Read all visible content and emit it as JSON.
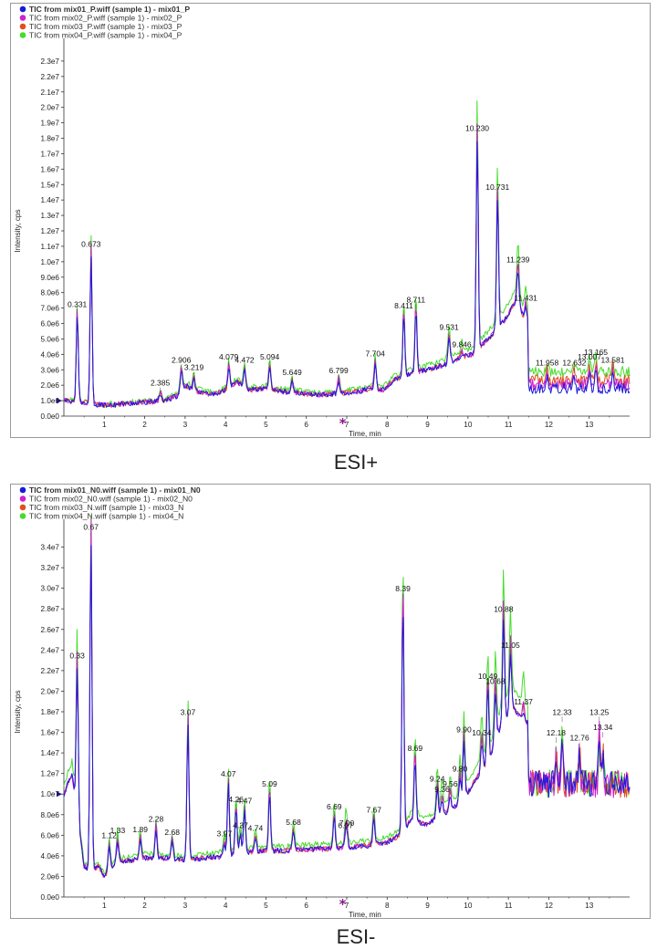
{
  "captions": {
    "top": "ESI+",
    "bottom": "ESI-"
  },
  "chart_data": [
    {
      "type": "line",
      "caption": "ESI+",
      "xlabel": "Time, min",
      "ylabel": "Intensity, cps",
      "xlim": [
        0,
        14
      ],
      "ylim": [
        0,
        24000000
      ],
      "x_ticks": [
        1,
        2,
        3,
        4,
        5,
        6,
        7,
        8,
        9,
        10,
        11,
        12,
        13
      ],
      "y_ticks": [
        0,
        1000000,
        2000000,
        3000000,
        4000000,
        5000000,
        6000000,
        7000000,
        8000000,
        9000000,
        10000000,
        11000000,
        12000000,
        13000000,
        14000000,
        15000000,
        16000000,
        17000000,
        18000000,
        19000000,
        20000000,
        21000000,
        22000000,
        23000000
      ],
      "y_tick_labels": [
        "0.0e0",
        "1.0e6",
        "2.0e6",
        "3.0e6",
        "4.0e6",
        "5.0e6",
        "6.0e6",
        "7.0e6",
        "8.0e6",
        "9.0e6",
        "1.0e7",
        "1.1e7",
        "1.2e7",
        "1.3e7",
        "1.4e7",
        "1.5e7",
        "1.6e7",
        "1.7e7",
        "1.8e7",
        "1.9e7",
        "2.0e7",
        "2.1e7",
        "2.2e7",
        "2.3e7"
      ],
      "legend": [
        "TIC from mix01_P.wiff (sample 1) - mix01_P",
        "TIC from mix02_P.wiff (sample 1) - mix02_P",
        "TIC from mix03_P.wiff (sample 1) - mix03_P",
        "TIC from mix04_P.wiff (sample 1) - mix04_P"
      ],
      "legend_colors": [
        "#1a1adc",
        "#d020d0",
        "#e0501e",
        "#46dc2a"
      ],
      "legend_placement": "top-left",
      "baseline_segments": [
        {
          "x": [
            0.0,
            0.5,
            0.65,
            1.0,
            1.5,
            2.0,
            2.5,
            2.8,
            3.0,
            3.3,
            3.7,
            4.0,
            4.3,
            4.6,
            5.0,
            5.4,
            5.8,
            6.2,
            6.5,
            6.9,
            7.3,
            7.6,
            7.9,
            8.2,
            8.6,
            9.0,
            9.4,
            9.8,
            10.1,
            10.5,
            10.9,
            11.2,
            11.45
          ],
          "y": [
            1000000,
            900000,
            800000,
            700000,
            800000,
            900000,
            1000000,
            1300000,
            2000000,
            1600000,
            1400000,
            1700000,
            2200000,
            1700000,
            1800000,
            1600000,
            1500000,
            1400000,
            1400000,
            1500000,
            1600000,
            1800000,
            1700000,
            2400000,
            2800000,
            3000000,
            3300000,
            3800000,
            4000000,
            5000000,
            6200000,
            7500000,
            6000000
          ]
        },
        {
          "x": [
            11.5,
            14.0
          ],
          "y": [
            1800000,
            1800000
          ]
        }
      ],
      "peaks": [
        {
          "label": "0.331",
          "x": 0.331,
          "y": 6600000
        },
        {
          "label": "0.673",
          "x": 0.673,
          "y": 10500000
        },
        {
          "label": "2.385",
          "x": 2.385,
          "y": 1500000
        },
        {
          "label": "2.906",
          "x": 2.906,
          "y": 3000000
        },
        {
          "label": "3.219",
          "x": 3.219,
          "y": 2500000
        },
        {
          "label": "4.079",
          "x": 4.079,
          "y": 3200000
        },
        {
          "label": "4.472",
          "x": 4.472,
          "y": 3000000
        },
        {
          "label": "5.094",
          "x": 5.094,
          "y": 3200000
        },
        {
          "label": "5.649",
          "x": 5.649,
          "y": 2200000
        },
        {
          "label": "6.799",
          "x": 6.799,
          "y": 2300000
        },
        {
          "label": "7.704",
          "x": 7.704,
          "y": 3400000
        },
        {
          "label": "8.411",
          "x": 8.411,
          "y": 6500000
        },
        {
          "label": "8.711",
          "x": 8.711,
          "y": 6900000
        },
        {
          "label": "9.531",
          "x": 9.531,
          "y": 5100000
        },
        {
          "label": "9.846",
          "x": 9.846,
          "y": 4000000
        },
        {
          "label": "10.230",
          "x": 10.23,
          "y": 18000000
        },
        {
          "label": "10.731",
          "x": 10.731,
          "y": 14200000
        },
        {
          "label": "11.239",
          "x": 11.239,
          "y": 9500000
        },
        {
          "label": "11.431",
          "x": 11.431,
          "y": 7000000
        },
        {
          "label": "11.958",
          "x": 11.958,
          "y": 2800000
        },
        {
          "label": "12.632",
          "x": 12.632,
          "y": 2800000
        },
        {
          "label": "13.007",
          "x": 13.007,
          "y": 3200000
        },
        {
          "label": "13.165",
          "x": 13.165,
          "y": 3500000
        },
        {
          "label": "13.581",
          "x": 13.581,
          "y": 3000000
        }
      ],
      "noise_region": [
        11.5,
        14.0
      ]
    },
    {
      "type": "line",
      "caption": "ESI-",
      "xlabel": "Time, min",
      "ylabel": "Intensity, cps",
      "xlim": [
        0,
        14
      ],
      "ylim": [
        0,
        36000000
      ],
      "x_ticks": [
        1,
        2,
        3,
        4,
        5,
        6,
        7,
        8,
        9,
        10,
        11,
        12,
        13
      ],
      "y_ticks": [
        0,
        2000000,
        4000000,
        6000000,
        8000000,
        10000000,
        12000000,
        14000000,
        16000000,
        18000000,
        20000000,
        22000000,
        24000000,
        26000000,
        28000000,
        30000000,
        32000000,
        34000000
      ],
      "y_tick_labels": [
        "0.0e0",
        "2.0e6",
        "4.0e6",
        "6.0e6",
        "8.0e6",
        "1.0e7",
        "1.2e7",
        "1.4e7",
        "1.6e7",
        "1.8e7",
        "2.0e7",
        "2.2e7",
        "2.4e7",
        "2.6e7",
        "2.8e7",
        "3.0e7",
        "3.2e7",
        "3.4e7"
      ],
      "legend": [
        "TIC from mix01_N0.wiff (sample 1) - mix01_N0",
        "TIC from mix02_N0.wiff (sample 1) - mix02_N0",
        "TIC from mix03_N.wiff (sample 1) - mix03_N",
        "TIC from mix04_N.wiff (sample 1) - mix04_N"
      ],
      "legend_colors": [
        "#1a1adc",
        "#d020d0",
        "#e0501e",
        "#46dc2a"
      ],
      "legend_placement": "top-left",
      "baseline_segments": [
        {
          "x": [
            0.0,
            0.2,
            0.5,
            0.65,
            0.85,
            1.0,
            1.3,
            1.6,
            2.0,
            2.5,
            3.0,
            3.5,
            4.0,
            4.5,
            5.0,
            5.5,
            6.0,
            6.5,
            7.0,
            7.5,
            8.0,
            8.3,
            8.6,
            9.0,
            9.3,
            9.6,
            9.9,
            10.2,
            10.5,
            10.8,
            11.1,
            11.4
          ],
          "y": [
            10000000,
            12000000,
            3000000,
            2500000,
            3000000,
            2000000,
            3500000,
            3500000,
            3800000,
            3800000,
            3600000,
            3800000,
            4000000,
            4300000,
            4500000,
            4500000,
            4600000,
            4700000,
            4800000,
            5000000,
            5300000,
            6000000,
            7500000,
            7000000,
            8000000,
            8500000,
            9500000,
            11500000,
            13000000,
            16500000,
            18500000,
            17000000
          ]
        },
        {
          "x": [
            11.5,
            14.0
          ],
          "y": [
            11000000,
            11000000
          ]
        }
      ],
      "peaks": [
        {
          "label": "0.33",
          "x": 0.33,
          "y": 22500000
        },
        {
          "label": "0.67",
          "x": 0.67,
          "y": 35000000
        },
        {
          "label": "1.12",
          "x": 1.12,
          "y": 5000000
        },
        {
          "label": "1.33",
          "x": 1.33,
          "y": 5500000
        },
        {
          "label": "1.89",
          "x": 1.89,
          "y": 5600000
        },
        {
          "label": "2.28",
          "x": 2.28,
          "y": 6600000
        },
        {
          "label": "2.68",
          "x": 2.68,
          "y": 5300000
        },
        {
          "label": "3.07",
          "x": 3.07,
          "y": 17000000
        },
        {
          "label": "3.97",
          "x": 3.97,
          "y": 5200000
        },
        {
          "label": "4.07",
          "x": 4.07,
          "y": 11000000
        },
        {
          "label": "4.26",
          "x": 4.26,
          "y": 8500000
        },
        {
          "label": "4.37",
          "x": 4.37,
          "y": 6000000
        },
        {
          "label": "4.47",
          "x": 4.47,
          "y": 8400000
        },
        {
          "label": "4.74",
          "x": 4.74,
          "y": 5700000
        },
        {
          "label": "5.09",
          "x": 5.09,
          "y": 10000000
        },
        {
          "label": "5.68",
          "x": 5.68,
          "y": 6300000
        },
        {
          "label": "6.69",
          "x": 6.69,
          "y": 7800000
        },
        {
          "label": "6.97",
          "x": 6.97,
          "y": 6000000
        },
        {
          "label": "7.00",
          "x": 7.0,
          "y": 6200000
        },
        {
          "label": "7.67",
          "x": 7.67,
          "y": 7500000
        },
        {
          "label": "8.39",
          "x": 8.39,
          "y": 29000000
        },
        {
          "label": "8.69",
          "x": 8.69,
          "y": 13500000
        },
        {
          "label": "9.24",
          "x": 9.24,
          "y": 10500000
        },
        {
          "label": "9.36",
          "x": 9.36,
          "y": 9500000
        },
        {
          "label": "9.56",
          "x": 9.56,
          "y": 10000000
        },
        {
          "label": "9.80",
          "x": 9.8,
          "y": 11500000
        },
        {
          "label": "9.90",
          "x": 9.9,
          "y": 15300000
        },
        {
          "label": "10.34",
          "x": 10.34,
          "y": 15000000
        },
        {
          "label": "10.49",
          "x": 10.49,
          "y": 20500000
        },
        {
          "label": "10.68",
          "x": 10.68,
          "y": 20000000
        },
        {
          "label": "10.88",
          "x": 10.88,
          "y": 27000000
        },
        {
          "label": "11.05",
          "x": 11.05,
          "y": 23500000
        },
        {
          "label": "11.37",
          "x": 11.37,
          "y": 18000000
        },
        {
          "label": "12.18",
          "x": 12.18,
          "y": 15000000
        },
        {
          "label": "12.33",
          "x": 12.33,
          "y": 17000000
        },
        {
          "label": "12.76",
          "x": 12.76,
          "y": 14500000
        },
        {
          "label": "13.25",
          "x": 13.25,
          "y": 17000000
        },
        {
          "label": "13.34",
          "x": 13.34,
          "y": 15500000
        }
      ],
      "noise_region": [
        11.5,
        14.0
      ]
    }
  ]
}
